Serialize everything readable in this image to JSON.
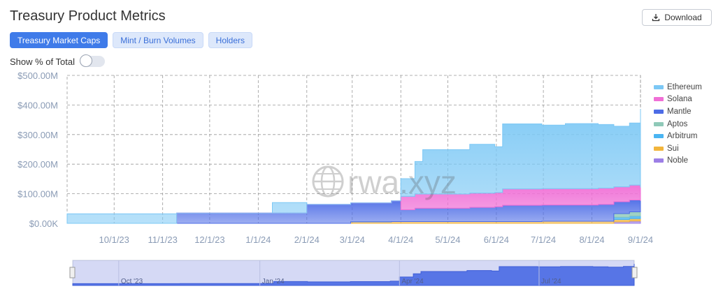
{
  "header": {
    "title": "Treasury Product Metrics",
    "download_label": "Download"
  },
  "tabs": [
    {
      "label": "Treasury Market Caps",
      "active": true
    },
    {
      "label": "Mint / Burn Volumes",
      "active": false
    },
    {
      "label": "Holders",
      "active": false
    }
  ],
  "toggle": {
    "label": "Show % of Total",
    "on": false
  },
  "watermark": "rwa.xyz",
  "colors": {
    "Ethereum": "#7cc8f5",
    "Solana": "#f06fd6",
    "Mantle": "#4d6ce6",
    "Aptos": "#8fc9b8",
    "Arbitrum": "#4ab5f2",
    "Sui": "#f2b53c",
    "Noble": "#9d7fe6"
  },
  "chart_data": {
    "type": "area",
    "stacked": true,
    "ylim": [
      0,
      500
    ],
    "y_ticks": [
      "$0.00K",
      "$100.00M",
      "$200.00M",
      "$300.00M",
      "$400.00M",
      "$500.00M"
    ],
    "x_ticks": [
      "10/1/23",
      "11/1/23",
      "12/1/23",
      "1/1/24",
      "2/1/24",
      "3/1/24",
      "4/1/24",
      "5/1/24",
      "6/1/24",
      "7/1/24",
      "8/1/24",
      "9/1/24"
    ],
    "navigator_labels": [
      "Oct '23",
      "Jan '24",
      "Apr '24",
      "Jul '24"
    ],
    "grid": true,
    "legend_position": "right",
    "x": [
      "9/1/23",
      "9/30/23",
      "10/31/23",
      "11/10/23",
      "12/10/23",
      "12/31/23",
      "1/10/24",
      "1/18/24",
      "1/25/24",
      "1/28/24",
      "2/1/24",
      "2/15/24",
      "2/29/24",
      "3/15/24",
      "3/26/24",
      "4/1/24",
      "4/10/24",
      "4/15/24",
      "5/1/24",
      "5/15/24",
      "5/31/24",
      "6/5/24",
      "6/15/24",
      "6/30/24",
      "7/15/24",
      "7/31/24",
      "8/5/24",
      "8/15/24",
      "8/25/24",
      "9/1/24"
    ],
    "series": [
      {
        "name": "Noble",
        "values": [
          0,
          0,
          0,
          0,
          0,
          0,
          0,
          0,
          0,
          0,
          0,
          0,
          0,
          0,
          0,
          0,
          0,
          0,
          0,
          0,
          0,
          0,
          0,
          0,
          0,
          0,
          0,
          5,
          8,
          9
        ]
      },
      {
        "name": "Sui",
        "values": [
          0,
          0,
          0,
          0,
          0,
          0,
          0,
          0,
          0,
          0,
          0,
          0,
          5,
          5,
          6,
          6,
          6,
          6,
          6,
          6,
          6,
          6,
          6,
          7,
          7,
          7,
          7,
          8,
          8,
          8
        ]
      },
      {
        "name": "Arbitrum",
        "values": [
          0,
          0,
          0,
          0,
          0,
          0,
          0,
          0,
          0,
          0,
          0,
          0,
          0,
          0,
          0,
          0,
          0,
          0,
          0,
          0,
          0,
          0,
          0,
          0,
          0,
          0,
          0,
          8,
          9,
          9
        ]
      },
      {
        "name": "Aptos",
        "values": [
          0,
          0,
          0,
          0,
          0,
          0,
          0,
          0,
          0,
          0,
          0,
          0,
          0,
          0,
          0,
          0,
          0,
          0,
          0,
          0,
          0,
          0,
          0,
          0,
          0,
          0,
          0,
          12,
          14,
          15
        ]
      },
      {
        "name": "Mantle",
        "values": [
          0,
          0,
          0,
          35,
          35,
          35,
          35,
          35,
          35,
          35,
          64,
          64,
          64,
          64,
          70,
          40,
          45,
          45,
          45,
          48,
          50,
          55,
          55,
          55,
          55,
          55,
          57,
          40,
          40,
          35
        ]
      },
      {
        "name": "Solana",
        "values": [
          0,
          0,
          0,
          0,
          0,
          0,
          0,
          0,
          0,
          0,
          0,
          0,
          0,
          0,
          0,
          45,
          48,
          48,
          48,
          48,
          48,
          55,
          55,
          55,
          55,
          55,
          55,
          50,
          50,
          45
        ]
      },
      {
        "name": "Ethereum",
        "values": [
          32,
          32,
          32,
          0,
          0,
          0,
          35,
          35,
          35,
          35,
          0,
          0,
          0,
          0,
          0,
          60,
          110,
          150,
          150,
          165,
          155,
          220,
          220,
          215,
          220,
          220,
          215,
          205,
          210,
          265
        ]
      }
    ]
  }
}
